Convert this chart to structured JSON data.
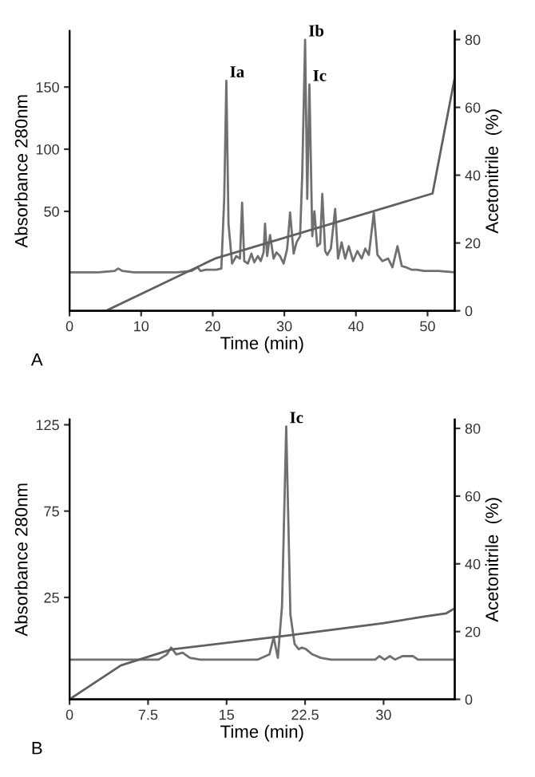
{
  "chart_data": [
    {
      "type": "line",
      "xlabel": "Time (min)",
      "ylabel": "Absorbance 280nm",
      "y2label": "Acetonitrile  (%)",
      "xlim": [
        0,
        53.8
      ],
      "xticks": [
        0,
        10,
        20,
        30,
        40,
        50
      ],
      "ylim": [
        -30,
        195
      ],
      "yticks": [
        50,
        100,
        150
      ],
      "y2lim": [
        0,
        82.5
      ],
      "y2ticks": [
        0,
        20,
        40,
        60,
        80
      ],
      "grid": false,
      "legend": false,
      "marker": "none",
      "line_style": "solid",
      "series": [
        {
          "color": "#707070",
          "x": [
            0,
            4,
            6.3,
            6.8,
            7.4,
            9,
            12,
            15,
            17,
            17.9,
            18.3,
            19,
            20.5,
            21.2,
            21.6,
            21.9,
            22.2,
            22.7,
            23.3,
            23.8,
            24.1,
            24.4,
            24.9,
            25.4,
            25.8,
            26.3,
            26.7,
            27.1,
            27.3,
            27.6,
            28.0,
            28.5,
            28.9,
            29.4,
            29.9,
            30.4,
            30.8,
            31.3,
            31.7,
            32.2,
            32.5,
            32.9,
            33.2,
            33.5,
            33.9,
            34.2,
            34.6,
            35.0,
            35.3,
            35.7,
            36.0,
            36.5,
            37.1,
            37.5,
            38.0,
            38.5,
            39.0,
            39.6,
            40.2,
            40.8,
            41.3,
            41.8,
            42.5,
            43.0,
            43.7,
            44.5,
            45.1,
            45.8,
            46.4,
            47.0,
            47.8,
            48.5,
            49.5,
            50.5,
            51.5,
            53.8
          ],
          "values": [
            1,
            1,
            2,
            4,
            2,
            1,
            1,
            1,
            2,
            5,
            2,
            3,
            3,
            4,
            60,
            155,
            40,
            8,
            14,
            12,
            57,
            10,
            8,
            16,
            9,
            14,
            10,
            17,
            40,
            14,
            31,
            12,
            17,
            14,
            8,
            20,
            49,
            16,
            25,
            30,
            80,
            188,
            60,
            152,
            30,
            50,
            22,
            24,
            64,
            18,
            15,
            20,
            52,
            12,
            25,
            12,
            22,
            10,
            18,
            12,
            20,
            15,
            49,
            15,
            10,
            12,
            5,
            22,
            6,
            5,
            3,
            3,
            2,
            2,
            2,
            1
          ]
        },
        {
          "color": "#606060",
          "axis": "y2",
          "x": [
            5.1,
            20.3,
            50.7,
            53.8
          ],
          "values": [
            0,
            15.4,
            34.6,
            68.8
          ]
        }
      ],
      "annotations": [
        {
          "text": "Ia",
          "x": 21.9,
          "y": 155
        },
        {
          "text": "Ib",
          "x": 32.9,
          "y": 188
        },
        {
          "text": "Ic",
          "x": 33.5,
          "y": 152
        },
        "A"
      ]
    },
    {
      "type": "line",
      "xlabel": "Time (min)",
      "ylabel": "Absorbance 280nm",
      "y2label": "Acetonitrile  (%)",
      "xlim": [
        0,
        36.8
      ],
      "xticks": [
        0,
        7.5,
        15,
        22.5,
        30
      ],
      "ylim": [
        -34,
        128
      ],
      "yticks": [
        25,
        75,
        125
      ],
      "y2lim": [
        0,
        82.6
      ],
      "y2ticks": [
        0,
        20,
        40,
        60,
        80
      ],
      "grid": false,
      "legend": false,
      "marker": "none",
      "line_style": "solid",
      "series": [
        {
          "color": "#707070",
          "x": [
            0,
            5,
            8.5,
            9.3,
            9.7,
            10.2,
            10.8,
            11.5,
            12.5,
            15,
            18,
            19.1,
            19.5,
            19.9,
            20.3,
            20.7,
            21.1,
            21.5,
            21.9,
            22.2,
            22.6,
            23.2,
            24,
            25,
            27,
            29.2,
            29.6,
            30.1,
            30.6,
            31.1,
            31.8,
            32.3,
            32.8,
            33.3,
            34,
            36.8
          ],
          "values": [
            -11,
            -11,
            -11,
            -8,
            -4,
            -8,
            -7,
            -10,
            -11,
            -11,
            -11,
            -8,
            2,
            -10,
            20,
            124,
            15,
            -2,
            -5,
            -4,
            -5,
            -8,
            -10,
            -11,
            -11,
            -11,
            -9,
            -11,
            -9,
            -11,
            -9,
            -9,
            -9,
            -11,
            -11,
            -11
          ]
        },
        {
          "color": "#606060",
          "axis": "y2",
          "x": [
            0,
            4.9,
            9.7,
            20.7,
            30,
            34,
            36,
            36.8
          ],
          "values": [
            0,
            10,
            14.7,
            18.8,
            22.5,
            24.5,
            25.4,
            26.9
          ]
        }
      ],
      "annotations": [
        {
          "text": "Ic",
          "x": 20.7,
          "y": 124
        },
        "B"
      ]
    }
  ]
}
